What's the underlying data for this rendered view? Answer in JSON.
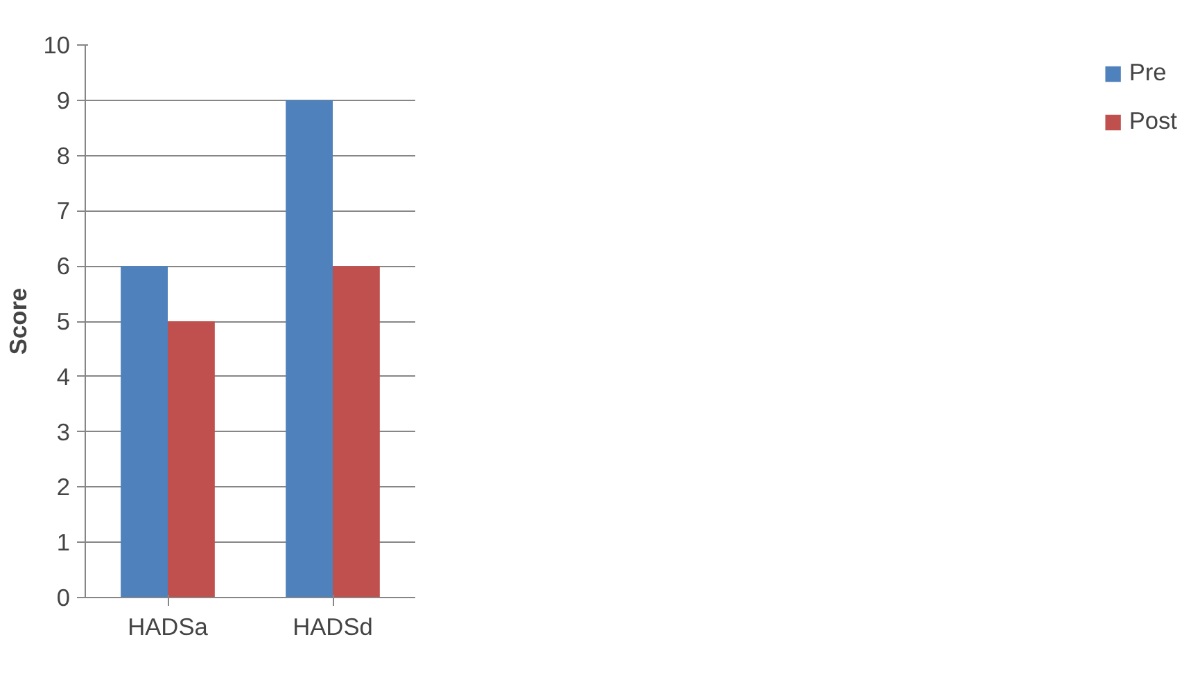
{
  "chart_data": {
    "type": "bar",
    "ylabel": "Score",
    "categories": [
      "HADSa",
      "HADSd"
    ],
    "series": [
      {
        "name": "Pre",
        "color": "#4f81bd",
        "values": [
          6,
          9
        ]
      },
      {
        "name": "Post",
        "color": "#c0504d",
        "values": [
          5,
          6
        ]
      }
    ],
    "ylim": [
      0,
      10
    ],
    "yticks": [
      0,
      1,
      2,
      3,
      4,
      5,
      6,
      7,
      8,
      9,
      10
    ],
    "grid": "y",
    "legend": "right"
  }
}
